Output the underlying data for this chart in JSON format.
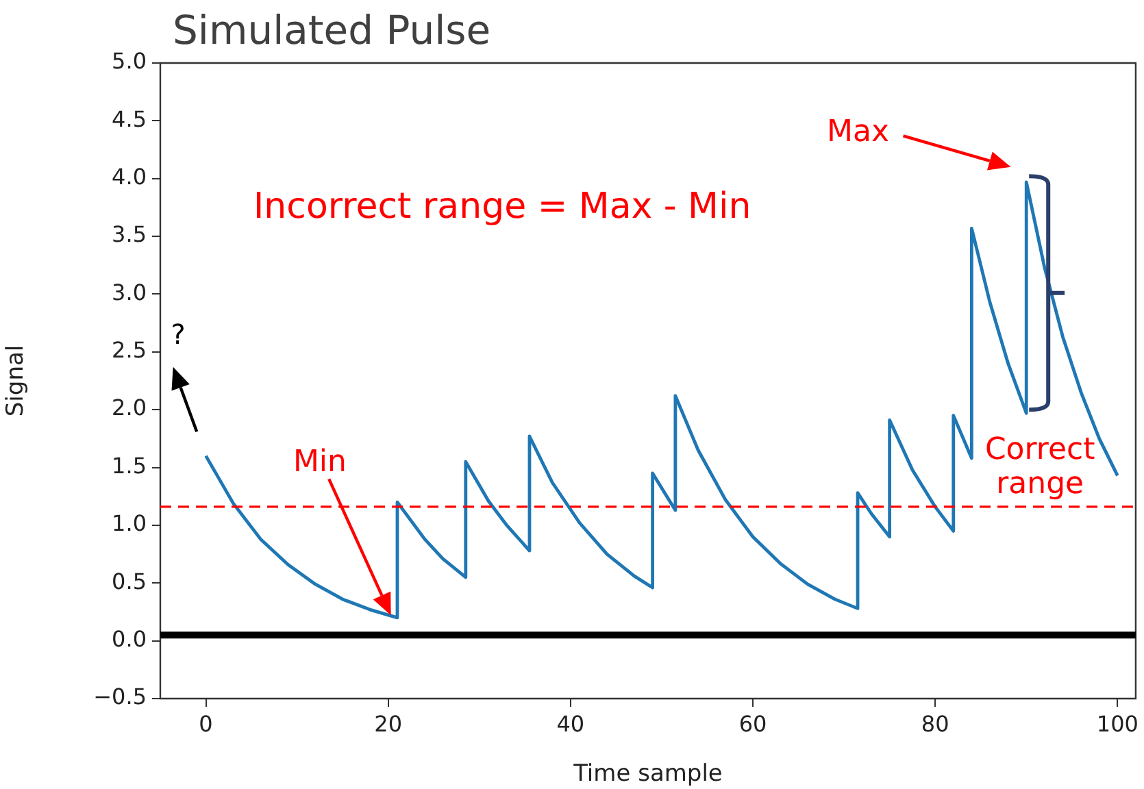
{
  "chart_data": {
    "type": "line",
    "title": "Simulated Pulse",
    "xlabel": "Time sample",
    "ylabel": "Signal",
    "x": [
      0,
      3,
      6,
      9,
      12,
      15,
      18,
      21,
      21,
      24,
      26,
      28.5,
      28.5,
      31,
      33,
      35.5,
      35.5,
      38,
      41,
      44,
      47,
      49,
      49,
      51.5,
      51.5,
      54,
      57,
      60,
      63,
      66,
      69,
      71.5,
      71.5,
      73,
      75,
      75,
      77.5,
      80,
      82,
      82,
      84,
      84,
      86,
      88,
      90,
      90,
      92,
      94,
      96,
      98,
      100
    ],
    "series": [
      {
        "color": "#1f77b4",
        "values": [
          1.6,
          1.19,
          0.88,
          0.66,
          0.49,
          0.36,
          0.27,
          0.2,
          1.2,
          0.88,
          0.71,
          0.55,
          1.55,
          1.21,
          1.0,
          0.78,
          1.77,
          1.37,
          1.02,
          0.75,
          0.56,
          0.46,
          1.45,
          1.13,
          2.12,
          1.65,
          1.22,
          0.9,
          0.67,
          0.49,
          0.36,
          0.28,
          1.28,
          1.1,
          0.9,
          1.91,
          1.48,
          1.16,
          0.95,
          1.95,
          1.58,
          3.57,
          2.93,
          2.4,
          1.97,
          3.97,
          3.23,
          2.63,
          2.15,
          1.75,
          1.43
        ]
      }
    ],
    "xlim": [
      -5,
      102
    ],
    "xticks": [
      0,
      20,
      40,
      60,
      80,
      100
    ],
    "ylim": [
      -0.5,
      5
    ],
    "yticks": [
      {
        "value": -0.5,
        "label": "−0.5"
      },
      {
        "value": 0,
        "label": "0.0"
      },
      {
        "value": 0.5,
        "label": "0.5"
      },
      {
        "value": 1,
        "label": "1.0"
      },
      {
        "value": 1.5,
        "label": "1.5"
      },
      {
        "value": 2,
        "label": "2.0"
      },
      {
        "value": 2.5,
        "label": "2.5"
      },
      {
        "value": 3,
        "label": "3.0"
      },
      {
        "value": 3.5,
        "label": "3.5"
      },
      {
        "value": 4,
        "label": "4.0"
      },
      {
        "value": 4.5,
        "label": "4.5"
      },
      {
        "value": 5,
        "label": "5.0"
      }
    ],
    "ref_lines": [
      {
        "axis": "y",
        "value": 0.05,
        "color": "#000000",
        "line_style": "solid"
      },
      {
        "axis": "y",
        "value": 1.16,
        "color": "#ff0000",
        "line_style": "dashed"
      }
    ],
    "annotations": [
      "Incorrect range = Max - Min",
      "Max",
      "Min",
      "?",
      "Correct range"
    ],
    "grid": false,
    "legend": false,
    "marker": "none",
    "line_style": "solid"
  }
}
